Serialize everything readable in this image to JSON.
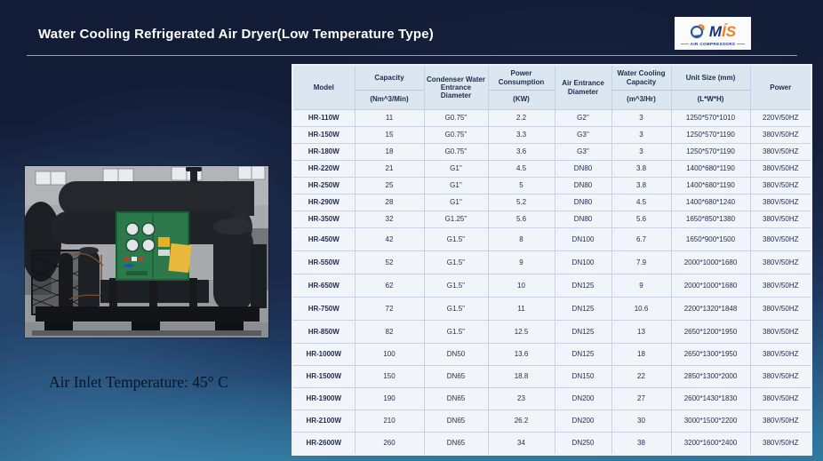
{
  "header": {
    "title": "Water Cooling Refrigerated Air Dryer(Low Temperature Type)",
    "logo": {
      "icon": "compressor-icon",
      "brand_m": "M",
      "brand_is": "ÍS",
      "tagline": "AIR COMPRESSORS"
    }
  },
  "photo": {
    "description": "water-cooled refrigerated air dryer machine in factory",
    "caption": "Air Inlet Temperature: 45° C"
  },
  "colors": {
    "background_top": "#131c36",
    "background_bottom": "#2d7ba1",
    "table_header_bg": "#dce6f1",
    "table_row_bg": "#f1f4f9",
    "table_text": "#1e2c4c",
    "title_text": "#ffffff",
    "brand_blue": "#16337f",
    "brand_orange": "#f08020",
    "cabinet_green": "#2c7a4b"
  },
  "table": {
    "columns": [
      {
        "label": "Model",
        "sub": ""
      },
      {
        "label": "Capacity",
        "sub": "(Nm^3/Min)"
      },
      {
        "label": "Condenser Water Entrance Diameter",
        "sub": ""
      },
      {
        "label": "Power Consumption",
        "sub": "(KW)"
      },
      {
        "label": "Air Entrance Diameter",
        "sub": ""
      },
      {
        "label": "Water Cooling Capacity",
        "sub": "(m^3/Hr)"
      },
      {
        "label": "Unit Size (mm)",
        "sub": "(L*W*H)"
      },
      {
        "label": "Power",
        "sub": ""
      }
    ],
    "rows": [
      [
        "HR-110W",
        "11",
        "G0.75''",
        "2.2",
        "G2''",
        "3",
        "1250*570*1010",
        "220V/50HZ"
      ],
      [
        "HR-150W",
        "15",
        "G0.75''",
        "3.3",
        "G3''",
        "3",
        "1250*570*1190",
        "380V/50HZ"
      ],
      [
        "HR-180W",
        "18",
        "G0.75''",
        "3.6",
        "G3''",
        "3",
        "1250*570*1190",
        "380V/50HZ"
      ],
      [
        "HR-220W",
        "21",
        "G1''",
        "4.5",
        "DN80",
        "3.8",
        "1400*680*1190",
        "380V/50HZ"
      ],
      [
        "HR-250W",
        "25",
        "G1''",
        "5",
        "DN80",
        "3.8",
        "1400*680*1190",
        "380V/50HZ"
      ],
      [
        "HR-290W",
        "28",
        "G1''",
        "5.2",
        "DN80",
        "4.5",
        "1400*680*1240",
        "380V/50HZ"
      ],
      [
        "HR-350W",
        "32",
        "G1.25''",
        "5.6",
        "DN80",
        "5.6",
        "1650*850*1380",
        "380V/50HZ"
      ],
      [
        "HR-450W",
        "42",
        "G1.5''",
        "8",
        "DN100",
        "6.7",
        "1650*900*1500",
        "380V/50HZ"
      ],
      [
        "HR-550W",
        "52",
        "G1.5''",
        "9",
        "DN100",
        "7.9",
        "2000*1000*1680",
        "380V/50HZ"
      ],
      [
        "HR-650W",
        "62",
        "G1.5''",
        "10",
        "DN125",
        "9",
        "2000*1000*1680",
        "380V/50HZ"
      ],
      [
        "HR-750W",
        "72",
        "G1.5''",
        "11",
        "DN125",
        "10.6",
        "2200*1320*1848",
        "380V/50HZ"
      ],
      [
        "HR-850W",
        "82",
        "G1.5''",
        "12.5",
        "DN125",
        "13",
        "2650*1200*1950",
        "380V/50HZ"
      ],
      [
        "HR-1000W",
        "100",
        "DN50",
        "13.6",
        "DN125",
        "18",
        "2650*1300*1950",
        "380V/50HZ"
      ],
      [
        "HR-1500W",
        "150",
        "DN65",
        "18.8",
        "DN150",
        "22",
        "2850*1300*2000",
        "380V/50HZ"
      ],
      [
        "HR-1900W",
        "190",
        "DN65",
        "23",
        "DN200",
        "27",
        "2600*1430*1830",
        "380V/50HZ"
      ],
      [
        "HR-2100W",
        "210",
        "DN65",
        "26.2",
        "DN200",
        "30",
        "3000*1500*2200",
        "380V/50HZ"
      ],
      [
        "HR-2600W",
        "260",
        "DN65",
        "34",
        "DN250",
        "38",
        "3200*1600*2400",
        "380V/50HZ"
      ]
    ]
  }
}
